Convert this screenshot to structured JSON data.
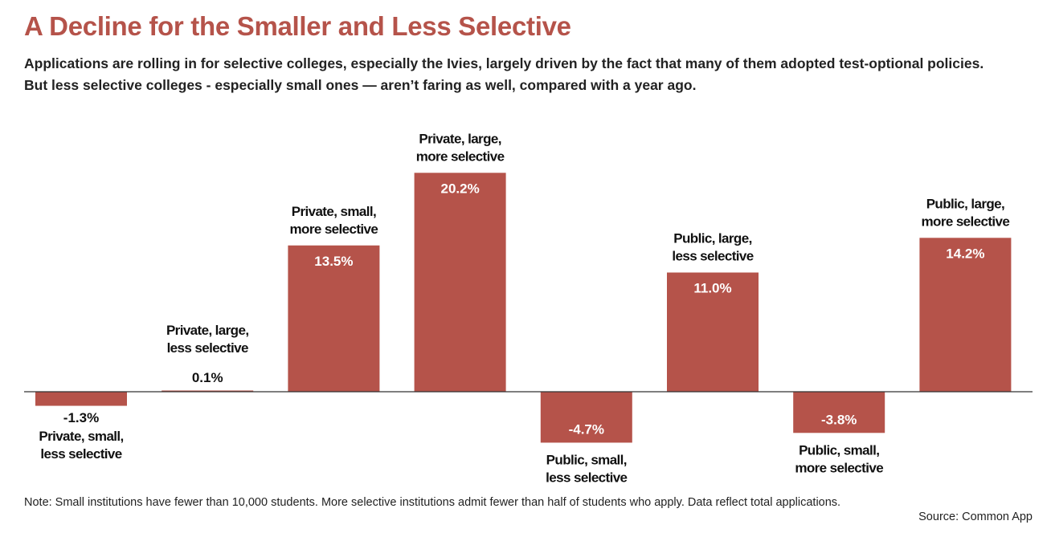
{
  "title": "A Decline for the Smaller and Less Selective",
  "subtitle_lines": [
    "Applications are rolling in for selective colleges, especially the Ivies, largely driven by the fact that many of them adopted test-optional policies.",
    "But less selective colleges - especially small ones — aren’t faring as well, compared with a year ago."
  ],
  "note": "Note: Small institutions have fewer than 10,000 students. More selective institutions admit fewer than half of students who apply. Data reflect total applications.",
  "source": "Source: Common App",
  "colors": {
    "bar": "#b5534a",
    "title": "#b5534a",
    "baseline": "#333333"
  },
  "chart_data": {
    "type": "bar",
    "categories": [
      [
        "Private, small,",
        "less selective"
      ],
      [
        "Private, large,",
        "less selective"
      ],
      [
        "Private, small,",
        "more selective"
      ],
      [
        "Private, large,",
        "more selective"
      ],
      [
        "Public, small,",
        "less selective"
      ],
      [
        "Public, large,",
        "less selective"
      ],
      [
        "Public, small,",
        "more selective"
      ],
      [
        "Public, large,",
        "more selective"
      ]
    ],
    "values": [
      -1.3,
      0.1,
      13.5,
      20.2,
      -4.7,
      11.0,
      -3.8,
      14.2
    ],
    "value_labels": [
      "-1.3%",
      "0.1%",
      "13.5%",
      "20.2%",
      "-4.7%",
      "11.0%",
      "-3.8%",
      "14.2%"
    ],
    "grid": false
  }
}
